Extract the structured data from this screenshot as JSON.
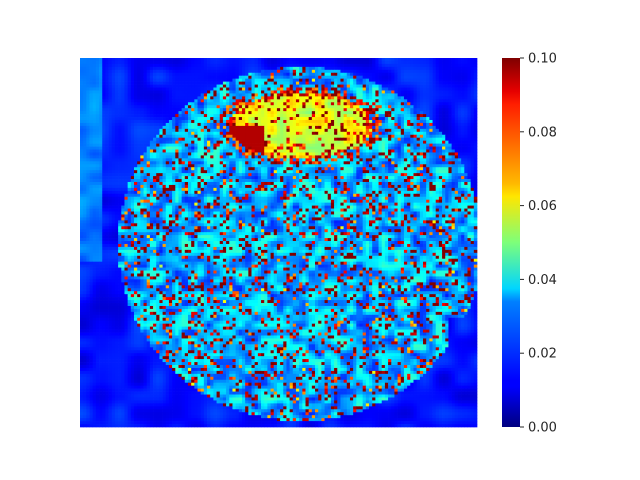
{
  "chart_data": {
    "type": "heatmap",
    "title": "",
    "xlabel": "",
    "ylabel": "",
    "colormap": "jet",
    "color_range": [
      0.0,
      0.1
    ],
    "colorbar": {
      "ticks": [
        0.0,
        0.02,
        0.04,
        0.06,
        0.08,
        0.1
      ],
      "tick_labels": [
        "0.00",
        "0.02",
        "0.04",
        "0.06",
        "0.08",
        "0.10"
      ],
      "placement": "right"
    },
    "axes_visible": false,
    "grid_resolution": [
      125,
      125
    ]
  }
}
